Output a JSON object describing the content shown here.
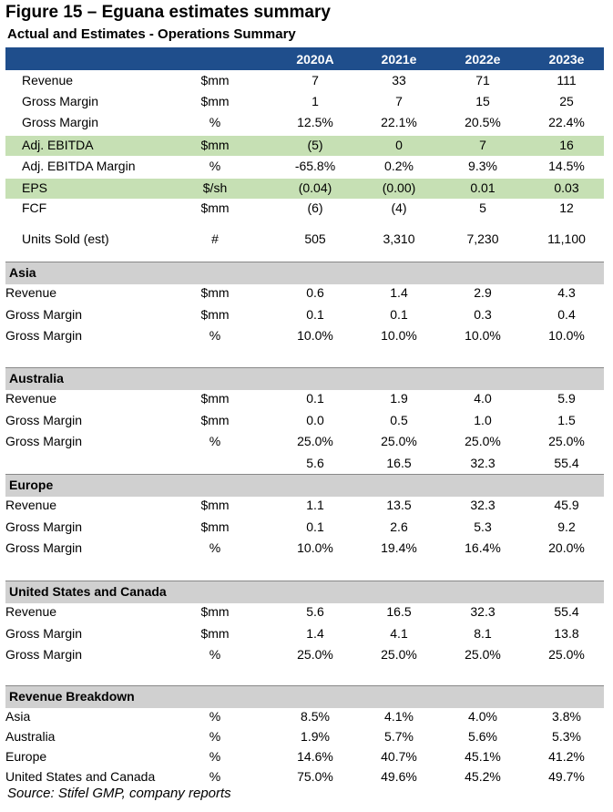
{
  "figure_title": "Figure 15 – Eguana estimates summary",
  "subtitle": "Actual and Estimates - Operations Summary",
  "columns": [
    "2020A",
    "2021e",
    "2022e",
    "2023e"
  ],
  "summary_rows": [
    {
      "label": "Revenue",
      "unit": "$mm",
      "values": [
        "7",
        "33",
        "71",
        "111"
      ],
      "highlight": false
    },
    {
      "label": "Gross Margin",
      "unit": "$mm",
      "values": [
        "1",
        "7",
        "15",
        "25"
      ],
      "highlight": false
    },
    {
      "label": "Gross Margin",
      "unit": "%",
      "values": [
        "12.5%",
        "22.1%",
        "20.5%",
        "22.4%"
      ],
      "highlight": false
    },
    {
      "label": "Adj. EBITDA",
      "unit": "$mm",
      "values": [
        "(5)",
        "0",
        "7",
        "16"
      ],
      "highlight": true
    },
    {
      "label": "Adj. EBITDA Margin",
      "unit": "%",
      "values": [
        "-65.8%",
        "0.2%",
        "9.3%",
        "14.5%"
      ],
      "highlight": false
    },
    {
      "label": "EPS",
      "unit": "$/sh",
      "values": [
        "(0.04)",
        "(0.00)",
        "0.01",
        "0.03"
      ],
      "highlight": true
    },
    {
      "label": "FCF",
      "unit": "$mm",
      "values": [
        "(6)",
        "(4)",
        "5",
        "12"
      ],
      "highlight": false
    },
    {
      "label": "Units Sold (est)",
      "unit": "#",
      "values": [
        "505",
        "3,310",
        "7,230",
        "11,100"
      ],
      "highlight": false
    }
  ],
  "sections": [
    {
      "name": "Asia",
      "rows": [
        {
          "label": "Revenue",
          "unit": "$mm",
          "values": [
            "0.6",
            "1.4",
            "2.9",
            "4.3"
          ]
        },
        {
          "label": "Gross Margin",
          "unit": "$mm",
          "values": [
            "0.1",
            "0.1",
            "0.3",
            "0.4"
          ]
        },
        {
          "label": "Gross Margin",
          "unit": "%",
          "values": [
            "10.0%",
            "10.0%",
            "10.0%",
            "10.0%"
          ]
        }
      ]
    },
    {
      "name": "Australia",
      "rows": [
        {
          "label": "Revenue",
          "unit": "$mm",
          "values": [
            "0.1",
            "1.9",
            "4.0",
            "5.9"
          ]
        },
        {
          "label": "Gross Margin",
          "unit": "$mm",
          "values": [
            "0.0",
            "0.5",
            "1.0",
            "1.5"
          ]
        },
        {
          "label": "Gross Margin",
          "unit": "%",
          "values": [
            "25.0%",
            "25.0%",
            "25.0%",
            "25.0%"
          ]
        },
        {
          "label": "",
          "unit": "",
          "values": [
            "5.6",
            "16.5",
            "32.3",
            "55.4"
          ]
        }
      ]
    },
    {
      "name": "Europe",
      "rows": [
        {
          "label": "Revenue",
          "unit": "$mm",
          "values": [
            "1.1",
            "13.5",
            "32.3",
            "45.9"
          ]
        },
        {
          "label": "Gross Margin",
          "unit": "$mm",
          "values": [
            "0.1",
            "2.6",
            "5.3",
            "9.2"
          ]
        },
        {
          "label": "Gross Margin",
          "unit": "%",
          "values": [
            "10.0%",
            "19.4%",
            "16.4%",
            "20.0%"
          ]
        }
      ]
    },
    {
      "name": "United States and Canada",
      "rows": [
        {
          "label": "Revenue",
          "unit": "$mm",
          "values": [
            "5.6",
            "16.5",
            "32.3",
            "55.4"
          ]
        },
        {
          "label": "Gross Margin",
          "unit": "$mm",
          "values": [
            "1.4",
            "4.1",
            "8.1",
            "13.8"
          ]
        },
        {
          "label": "Gross Margin",
          "unit": "%",
          "values": [
            "25.0%",
            "25.0%",
            "25.0%",
            "25.0%"
          ]
        }
      ]
    },
    {
      "name": "Revenue Breakdown",
      "rows": [
        {
          "label": "Asia",
          "unit": "%",
          "values": [
            "8.5%",
            "4.1%",
            "4.0%",
            "3.8%"
          ]
        },
        {
          "label": "Australia",
          "unit": "%",
          "values": [
            "1.9%",
            "5.7%",
            "5.6%",
            "5.3%"
          ]
        },
        {
          "label": "Europe",
          "unit": "%",
          "values": [
            "14.6%",
            "40.7%",
            "45.1%",
            "41.2%"
          ]
        },
        {
          "label": "United States and Canada",
          "unit": "%",
          "values": [
            "75.0%",
            "49.6%",
            "45.2%",
            "49.7%"
          ]
        }
      ]
    }
  ],
  "source": "Source: Stifel GMP, company reports",
  "colors": {
    "header_bg": "#1f4e8c",
    "highlight_bg": "#c6e0b4",
    "section_bg": "#d0d0d0"
  }
}
